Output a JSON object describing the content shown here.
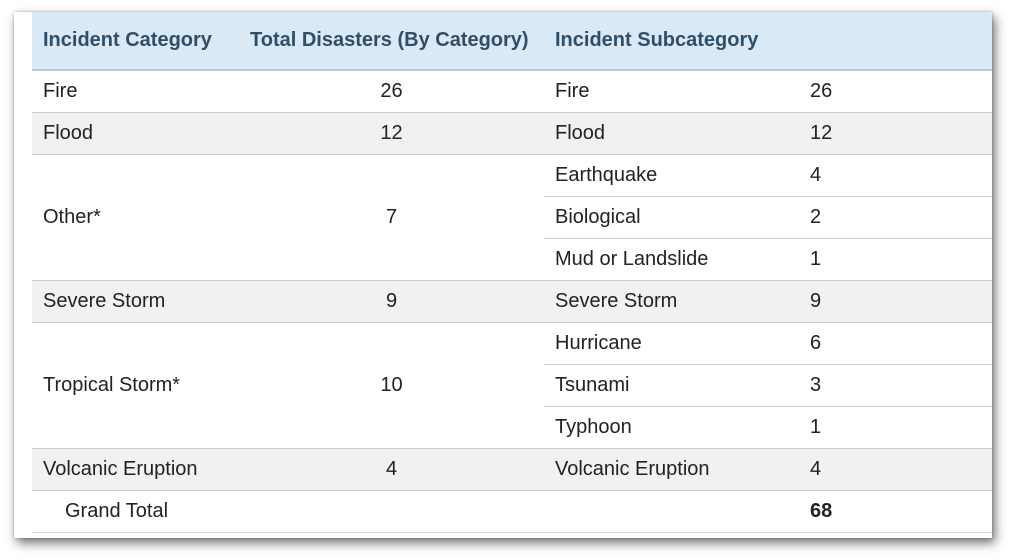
{
  "table": {
    "headers": {
      "category": "Incident Category",
      "total": "Total Disasters (By Category)",
      "subcategory": "Incident Subcategory"
    },
    "groups": [
      {
        "category": "Fire",
        "total": "26",
        "subs": [
          {
            "name": "Fire",
            "count": "26"
          }
        ]
      },
      {
        "category": "Flood",
        "total": "12",
        "subs": [
          {
            "name": "Flood",
            "count": "12"
          }
        ]
      },
      {
        "category": "Other*",
        "total": "7",
        "subs": [
          {
            "name": "Earthquake",
            "count": "4"
          },
          {
            "name": "Biological",
            "count": "2"
          },
          {
            "name": "Mud or Landslide",
            "count": "1"
          }
        ]
      },
      {
        "category": "Severe Storm",
        "total": "9",
        "subs": [
          {
            "name": "Severe Storm",
            "count": "9"
          }
        ]
      },
      {
        "category": "Tropical Storm*",
        "total": "10",
        "subs": [
          {
            "name": "Hurricane",
            "count": "6"
          },
          {
            "name": "Tsunami",
            "count": "3"
          },
          {
            "name": "Typhoon",
            "count": "1"
          }
        ]
      },
      {
        "category": "Volcanic Eruption",
        "total": "4",
        "subs": [
          {
            "name": "Volcanic Eruption",
            "count": "4"
          }
        ]
      }
    ],
    "grand_total": {
      "label": "Grand Total",
      "value": "68"
    }
  }
}
